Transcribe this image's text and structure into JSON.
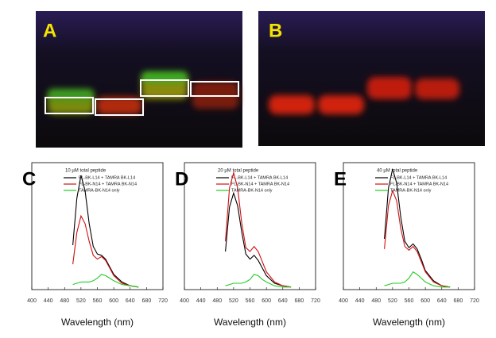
{
  "gel_panels": [
    {
      "label": "A"
    },
    {
      "label": "B"
    }
  ],
  "chart_data": [
    {
      "type": "line",
      "panel_label": "C",
      "annotation": "10 µM total peptide",
      "x_label": "Wavelength (nm)",
      "x": [
        500,
        510,
        520,
        530,
        540,
        550,
        560,
        570,
        580,
        590,
        600,
        620,
        640,
        660
      ],
      "series": [
        {
          "name": "FL-BK-L14 + TAMRA BK-L14",
          "color": "#000000",
          "values": [
            35,
            72,
            90,
            78,
            52,
            34,
            28,
            27,
            24,
            18,
            12,
            6,
            3,
            2
          ]
        },
        {
          "name": "FL-BK-N14 + TAMRA BK-N14",
          "color": "#d01010",
          "values": [
            20,
            45,
            58,
            52,
            38,
            27,
            24,
            26,
            23,
            17,
            11,
            5,
            3,
            2
          ]
        },
        {
          "name": "TAMRA-BK-N14 only",
          "color": "#22cc22",
          "values": [
            4,
            5,
            6,
            6,
            6,
            7,
            9,
            12,
            11,
            9,
            7,
            4,
            3,
            2
          ]
        }
      ],
      "xlim": [
        400,
        720
      ],
      "xticks": [
        400,
        440,
        480,
        520,
        560,
        600,
        640,
        680,
        720
      ],
      "ylim": [
        0,
        100
      ]
    },
    {
      "type": "line",
      "panel_label": "D",
      "annotation": "20 µM total peptide",
      "x_label": "Wavelength (nm)",
      "x": [
        500,
        510,
        520,
        530,
        540,
        550,
        560,
        570,
        580,
        590,
        600,
        620,
        640,
        660
      ],
      "series": [
        {
          "name": "FL-BK-L14 + TAMRA BK-L14",
          "color": "#000000",
          "values": [
            30,
            65,
            76,
            66,
            45,
            28,
            24,
            27,
            23,
            17,
            11,
            5,
            3,
            2
          ]
        },
        {
          "name": "FL-BK-N14 + TAMRA BK-N14",
          "color": "#d01010",
          "values": [
            38,
            80,
            92,
            80,
            52,
            33,
            30,
            34,
            30,
            22,
            14,
            6,
            3,
            2
          ]
        },
        {
          "name": "TAMRA-BK-N14 only",
          "color": "#22cc22",
          "values": [
            3,
            4,
            5,
            5,
            5,
            6,
            8,
            12,
            11,
            8,
            6,
            3,
            2,
            2
          ]
        }
      ],
      "xlim": [
        400,
        720
      ],
      "xticks": [
        400,
        440,
        480,
        520,
        560,
        600,
        640,
        680,
        720
      ],
      "ylim": [
        0,
        100
      ]
    },
    {
      "type": "line",
      "panel_label": "E",
      "annotation": "40 µM total peptide",
      "x_label": "Wavelength (nm)",
      "x": [
        500,
        510,
        520,
        530,
        540,
        550,
        560,
        570,
        580,
        590,
        600,
        620,
        640,
        660
      ],
      "series": [
        {
          "name": "FL-BK-L14 + TAMRA BK-L14",
          "color": "#000000",
          "values": [
            40,
            80,
            95,
            84,
            57,
            38,
            33,
            36,
            32,
            24,
            15,
            7,
            3,
            2
          ]
        },
        {
          "name": "FL-BK-N14 + TAMRA BK-N14",
          "color": "#d01010",
          "values": [
            32,
            66,
            78,
            70,
            48,
            34,
            31,
            34,
            30,
            22,
            14,
            6,
            3,
            2
          ]
        },
        {
          "name": "TAMRA-BK-N14 only",
          "color": "#22cc22",
          "values": [
            3,
            4,
            5,
            5,
            5,
            6,
            9,
            14,
            12,
            9,
            6,
            3,
            2,
            2
          ]
        }
      ],
      "xlim": [
        400,
        720
      ],
      "xticks": [
        400,
        440,
        480,
        520,
        560,
        600,
        640,
        680,
        720
      ],
      "ylim": [
        0,
        100
      ]
    }
  ]
}
